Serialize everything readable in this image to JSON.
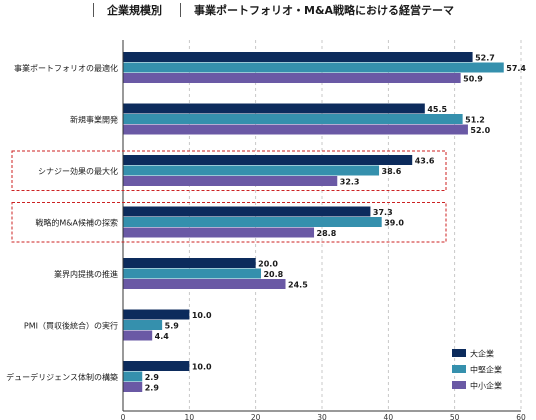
{
  "header": {
    "segment_1": "企業規模別",
    "segment_2": "事業ポートフォリオ・M&A戦略における経営テーマ"
  },
  "colors": {
    "large": "#0c2b5c",
    "medium": "#3590ad",
    "small": "#6a59a5",
    "highlight_border": "#cc2222",
    "grid": "#bbbbbb",
    "axis": "#333333"
  },
  "chart_data": {
    "type": "bar",
    "orientation": "horizontal",
    "title": "事業ポートフォリオ・M&A戦略における経営テーマ",
    "xlabel": "",
    "ylabel": "",
    "xlim": [
      0,
      60
    ],
    "x_ticks": [
      "0",
      "10",
      "20",
      "30",
      "40",
      "50",
      "60"
    ],
    "grid": true,
    "legend_position": "bottom-right",
    "categories": [
      "事業ポートフォリオの最適化",
      "新規事業開発",
      "シナジー効果の最大化",
      "戦略的M&A候補の探索",
      "業界内提携の推進",
      "PMI（買収後統合）の実行",
      "デューデリジェンス体制の構築"
    ],
    "highlighted": [
      "シナジー効果の最大化",
      "戦略的M&A候補の探索"
    ],
    "series": [
      {
        "name": "大企業",
        "values": [
          52.7,
          45.5,
          43.6,
          37.3,
          20.0,
          10.0,
          10.0
        ],
        "labels": [
          "52.7",
          "45.5",
          "43.6",
          "37.3",
          "20.0",
          "10.0",
          "10.0"
        ]
      },
      {
        "name": "中堅企業",
        "values": [
          57.4,
          51.2,
          38.6,
          39.0,
          20.8,
          5.9,
          2.9
        ],
        "labels": [
          "57.4",
          "51.2",
          "38.6",
          "39.0",
          "20.8",
          "5.9",
          "2.9"
        ]
      },
      {
        "name": "中小企業",
        "values": [
          50.9,
          52.0,
          32.3,
          28.8,
          24.5,
          4.4,
          2.9
        ],
        "labels": [
          "50.9",
          "52.0",
          "32.3",
          "28.8",
          "24.5",
          "4.4",
          "2.9"
        ]
      }
    ]
  }
}
